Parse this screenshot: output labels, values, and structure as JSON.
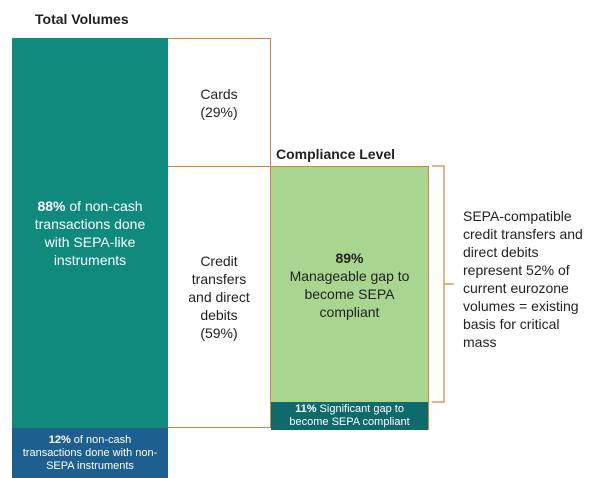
{
  "header": {
    "total_title": "Total Volumes",
    "compliance_title": "Compliance Level"
  },
  "total": {
    "sepa_like": {
      "pct": "88%",
      "text": "of non-cash transactions done with SEPA-like instruments"
    },
    "non_sepa": {
      "pct": "12%",
      "text": "of non-cash transactions done with non- SEPA instruments"
    }
  },
  "breakdown": {
    "cards": {
      "label": "Cards",
      "pct": "(29%)"
    },
    "credit": {
      "label": "Credit transfers and direct debits",
      "pct": "(59%)"
    }
  },
  "compliance": {
    "manageable": {
      "pct": "89%",
      "text": "Manageable gap to become SEPA compliant"
    },
    "significant": {
      "pct": "11%",
      "text": "Significant gap to become SEPA compliant"
    }
  },
  "note": "SEPA-compatible credit transfers and direct debits represent 52% of current eurozone volumes = existing basis for critical mass"
}
